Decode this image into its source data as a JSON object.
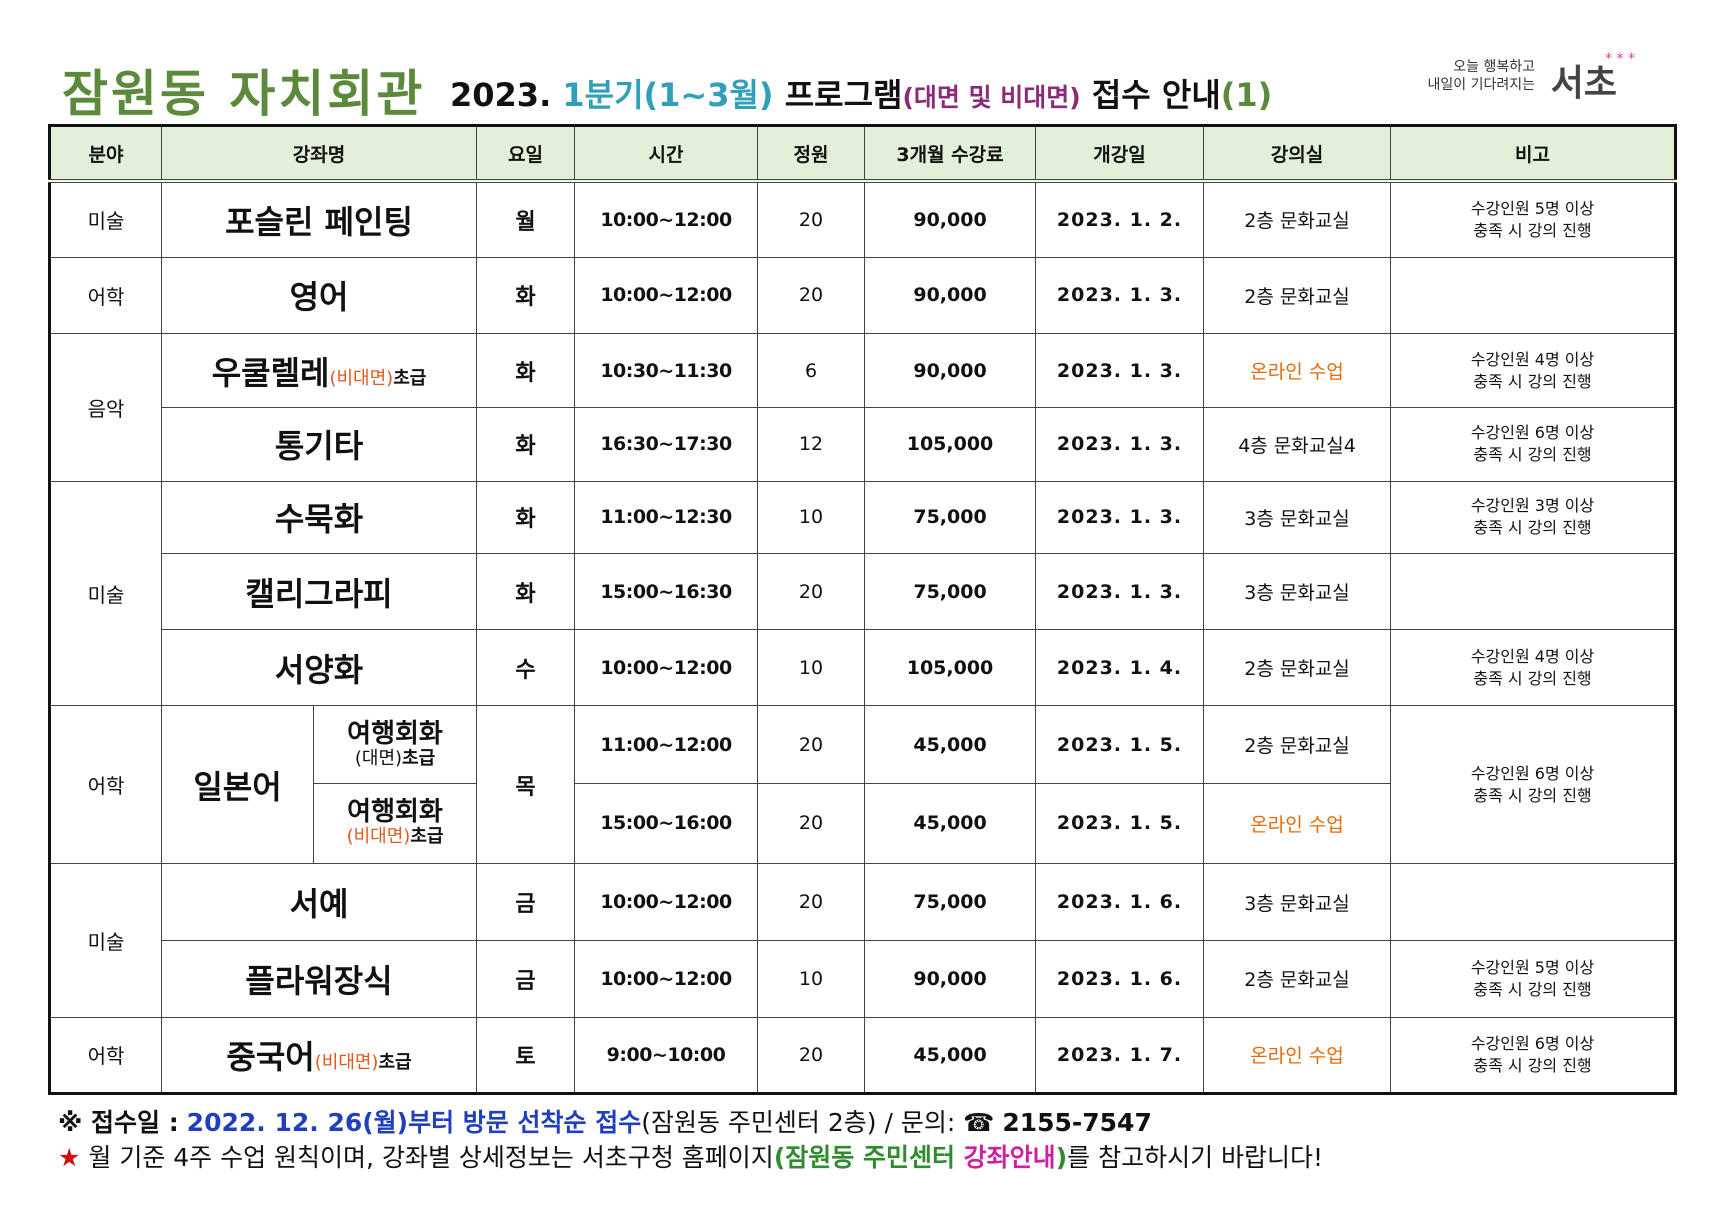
{
  "header": {
    "title_main": "잠원동 자치회관",
    "year": "2023.",
    "quarter": "1분기(1~3월)",
    "program": "프로그램",
    "mode": "(대면 및 비대면)",
    "notice": "접수 안내",
    "number": "(1)"
  },
  "logo": {
    "tagline1": "오늘 행복하고",
    "tagline2": "내일이 기다려지는",
    "name": "서초",
    "stars": "* * *",
    "star_colors": [
      "#e0409a",
      "#2aa0d0",
      "#6abf40"
    ]
  },
  "table": {
    "headers": [
      "분야",
      "강좌명",
      "요일",
      "시간",
      "정원",
      "3개월 수강료",
      "개강일",
      "강의실",
      "비고"
    ],
    "rows": [
      {
        "cat": "미술",
        "course": "포슬린 페인팅",
        "day": "월",
        "time": "10:00~12:00",
        "cap": "20",
        "fee": "90,000",
        "start": "2023. 1. 2.",
        "room": "2층 문화교실",
        "note1": "수강인원 5명 이상",
        "note2": "충족 시 강의 진행"
      },
      {
        "cat": "어학",
        "course": "영어",
        "day": "화",
        "time": "10:00~12:00",
        "cap": "20",
        "fee": "90,000",
        "start": "2023. 1. 3.",
        "room": "2층 문화교실"
      },
      {
        "cat": "음악",
        "course": "우쿨렐레",
        "mode": "(비대면)",
        "level": "초급",
        "day": "화",
        "time": "10:30~11:30",
        "cap": "6",
        "fee": "90,000",
        "start": "2023. 1. 3.",
        "room": "온라인 수업",
        "note1": "수강인원 4명 이상",
        "note2": "충족 시 강의 진행"
      },
      {
        "course": "통기타",
        "day": "화",
        "time": "16:30~17:30",
        "cap": "12",
        "fee": "105,000",
        "start": "2023. 1. 3.",
        "room": "4층 문화교실4",
        "note1": "수강인원 6명 이상",
        "note2": "충족 시 강의 진행"
      },
      {
        "cat": "미술",
        "course": "수묵화",
        "day": "화",
        "time": "11:00~12:30",
        "cap": "10",
        "fee": "75,000",
        "start": "2023. 1. 3.",
        "room": "3층 문화교실",
        "note1": "수강인원 3명 이상",
        "note2": "충족 시 강의 진행"
      },
      {
        "course": "캘리그라피",
        "day": "화",
        "time": "15:00~16:30",
        "cap": "20",
        "fee": "75,000",
        "start": "2023. 1. 3.",
        "room": "3층 문화교실"
      },
      {
        "course": "서양화",
        "day": "수",
        "time": "10:00~12:00",
        "cap": "10",
        "fee": "105,000",
        "start": "2023. 1. 4.",
        "room": "2층 문화교실",
        "note1": "수강인원 4명 이상",
        "note2": "충족 시 강의 진행"
      },
      {
        "cat": "어학",
        "course": "일본어",
        "sub": "여행회화",
        "sub_mode": "(대면)",
        "level": "초급",
        "day": "목",
        "time": "11:00~12:00",
        "cap": "20",
        "fee": "45,000",
        "start": "2023. 1. 5.",
        "room": "2층 문화교실",
        "note1": "수강인원 6명 이상",
        "note2": "충족 시 강의 진행"
      },
      {
        "sub": "여행회화",
        "sub_mode": "(비대면)",
        "level": "초급",
        "time": "15:00~16:00",
        "cap": "20",
        "fee": "45,000",
        "start": "2023. 1. 5.",
        "room": "온라인 수업"
      },
      {
        "cat": "미술",
        "course": "서예",
        "day": "금",
        "time": "10:00~12:00",
        "cap": "20",
        "fee": "75,000",
        "start": "2023. 1. 6.",
        "room": "3층 문화교실"
      },
      {
        "course": "플라워장식",
        "day": "금",
        "time": "10:00~12:00",
        "cap": "10",
        "fee": "90,000",
        "start": "2023. 1. 6.",
        "room": "2층 문화교실",
        "note1": "수강인원 5명 이상",
        "note2": "충족 시 강의 진행"
      },
      {
        "cat": "어학",
        "course": "중국어",
        "mode": "(비대면)",
        "level": "초급",
        "day": "토",
        "time": "9:00~10:00",
        "cap": "20",
        "fee": "45,000",
        "start": "2023. 1. 7.",
        "room": "온라인 수업",
        "note1": "수강인원 6명 이상",
        "note2": "충족 시 강의 진행"
      }
    ]
  },
  "footer": {
    "line1_mark": "※ 접수일 :",
    "line1_date": "2022. 12. 26(월)부터 방문 선착순 접수",
    "line1_place": "(잠원동 주민센터 2층)",
    "line1_sep": " / 문의:",
    "line1_phone_icon": "☎",
    "line1_phone": "2155-7547",
    "line2_star": "★",
    "line2_a": " 월 기준 4주 수업 원칙이며, 강좌별 상세정보는 서초구청 홈페이지",
    "line2_paren_open": "(",
    "line2_green": "잠원동 주민센터",
    "line2_magenta": " 강좌안내",
    "line2_paren_close": ")",
    "line2_b": "를 참고하시기 바랍니다!"
  }
}
